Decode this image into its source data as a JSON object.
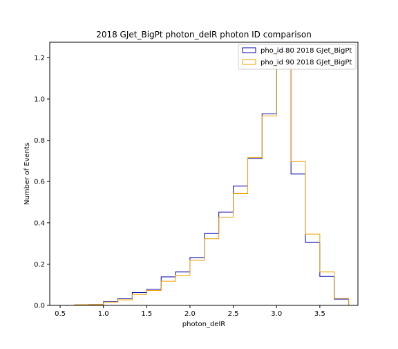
{
  "chart_data": {
    "type": "histogram-step",
    "title": "2018 GJet_BigPt photon_delR photon ID comparison",
    "xlabel": "photon_delR",
    "ylabel": "Number of Events",
    "xlim": [
      0.38,
      3.94
    ],
    "ylim": [
      0,
      1.275
    ],
    "x_ticks": [
      0.5,
      1.0,
      1.5,
      2.0,
      2.5,
      3.0,
      3.5
    ],
    "x_tick_labels": [
      "0.5",
      "1.0",
      "1.5",
      "2.0",
      "2.5",
      "3.0",
      "3.5"
    ],
    "y_ticks": [
      0.0,
      0.2,
      0.4,
      0.6,
      0.8,
      1.0,
      1.2
    ],
    "y_tick_labels": [
      "0.0",
      "0.2",
      "0.4",
      "0.6",
      "0.8",
      "1.0",
      "1.2"
    ],
    "legend_position": "top-right",
    "bin_edges": [
      0.667,
      0.833,
      1.0,
      1.167,
      1.333,
      1.5,
      1.667,
      1.833,
      2.0,
      2.167,
      2.333,
      2.5,
      2.667,
      2.833,
      3.0,
      3.167,
      3.333,
      3.5,
      3.667,
      3.833
    ],
    "series": [
      {
        "name": "pho_id 80 2018 GJet_BigPt",
        "color": "#0000aa",
        "values": [
          0.003,
          0.004,
          0.018,
          0.032,
          0.062,
          0.078,
          0.138,
          0.162,
          0.232,
          0.348,
          0.452,
          0.578,
          0.712,
          0.928,
          1.23,
          0.637,
          0.305,
          0.14,
          0.03
        ]
      },
      {
        "name": "pho_id 90 2018 GJet_BigPt",
        "color": "#f0a000",
        "values": [
          0.003,
          0.004,
          0.016,
          0.027,
          0.053,
          0.072,
          0.117,
          0.145,
          0.218,
          0.323,
          0.426,
          0.542,
          0.716,
          0.918,
          1.22,
          0.697,
          0.345,
          0.162,
          0.033
        ]
      }
    ]
  }
}
